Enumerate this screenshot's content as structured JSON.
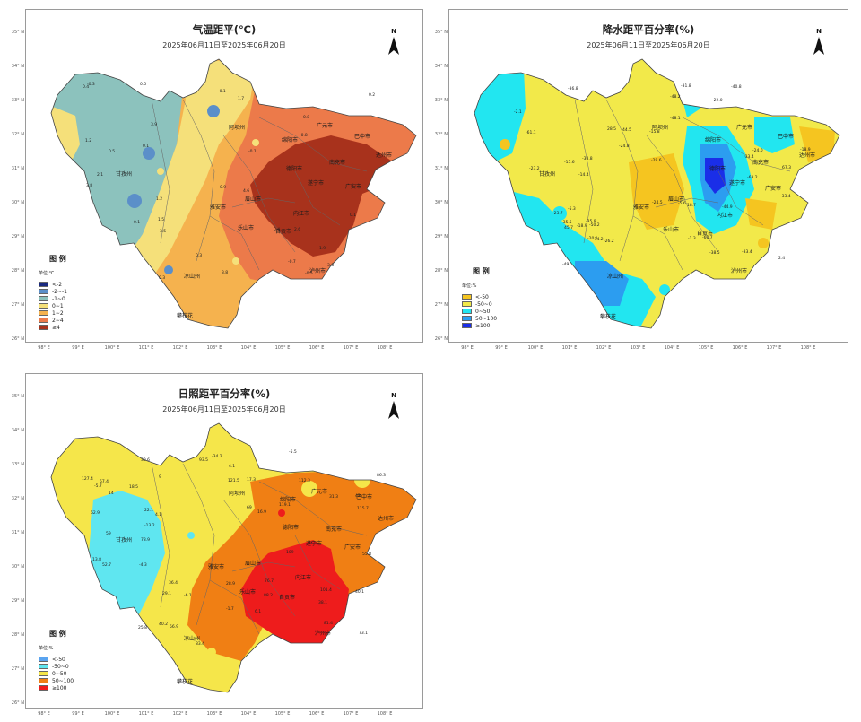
{
  "colors": {
    "temp": [
      "#1a2a80",
      "#5b8fc9",
      "#8cc2bd",
      "#f5e07a",
      "#f5b24e",
      "#ec7a4a",
      "#a8321c"
    ],
    "precip": [
      "#f5c520",
      "#f2e94a",
      "#22e6f0",
      "#2c9df0",
      "#1a2ee8"
    ],
    "sun": [
      "#5aa4f0",
      "#5fe6f0",
      "#f5e64a",
      "#f07f14",
      "#ee1c1c"
    ]
  },
  "lat_labels": [
    "35° N",
    "34° N",
    "33° N",
    "32° N",
    "31° N",
    "30° N",
    "29° N",
    "28° N",
    "27° N",
    "26° N"
  ],
  "lon_labels": [
    "98° E",
    "99° E",
    "100° E",
    "101° E",
    "102° E",
    "103° E",
    "104° E",
    "105° E",
    "106° E",
    "107° E",
    "108° E"
  ],
  "north_label": "N",
  "cities": {
    "aba": "阿坝州",
    "mianyang": "绵阳市",
    "guangyuan": "广元市",
    "bazhong": "巴中市",
    "deyang": "德阳市",
    "nanchong": "南充市",
    "dazhou": "达州市",
    "suining": "遂宁市",
    "ganzi": "甘孜州",
    "yaan": "雅安市",
    "meishan": "眉山市",
    "leshan": "乐山市",
    "zigong": "自贡市",
    "liangshan": "凉山州",
    "luzhou": "泸州市",
    "panzhihua": "攀枝花",
    "guangan": "广安市",
    "neijiang": "内江市"
  },
  "panels": {
    "temp": {
      "title": "气温距平(℃)",
      "subtitle": "2025年06月11日至2025年06月20日",
      "legend_title": "图 例",
      "legend_unit": "单位:℃",
      "legend": [
        "<-2",
        "-2~-1",
        "-1~0",
        "0~1",
        "1~2",
        "2~4",
        "≥4"
      ],
      "values": [
        "0.1",
        "-0.1",
        "-0.8",
        "-0.1",
        "0.2",
        "2.1",
        "0.5",
        "3.9",
        "0.4",
        "3.8",
        "3.5",
        "2.6",
        "0.9",
        "-0.3",
        "0.1",
        "1.7",
        "4.6",
        "3.8",
        "0.3",
        "0.1",
        "1.2",
        "3.8",
        "-0.5",
        "0.8",
        "1.2",
        "1.9",
        "0.4",
        "0.5",
        "-0.7",
        "1.5",
        "0.3"
      ]
    },
    "precip": {
      "title": "降水距平百分率(%)",
      "subtitle": "2025年06月11日至2025年06月20日",
      "legend_title": "图 例",
      "legend_unit": "单位:%",
      "legend": [
        "<-50",
        "-50~0",
        "0~50",
        "50~100",
        "≥100"
      ],
      "values": [
        "-24.5",
        "-35.9",
        "2.4",
        "-22.0",
        "-38.8",
        "-23.7",
        "-24.0",
        "-20.1",
        "-1.3",
        "-50.2",
        "-14.4",
        "-35.5",
        "-63.2",
        "-48.2",
        "-14.2",
        "-23.2",
        "-31.8",
        "45.7",
        "18.7",
        "-24.8",
        "-2.1",
        "-5.3",
        "28.5",
        "-36.8",
        "-38.5",
        "-15.6",
        "-61.1",
        "-49",
        "-40.8",
        "-44.9",
        "44.5",
        "67.3",
        "-5.6",
        "-33.4",
        "-29.6",
        "-18.9",
        "-15.8",
        "-18.9",
        "-33.4",
        "-60.7",
        "-33.4",
        "-26.2",
        "-48.1"
      ]
    },
    "sun": {
      "title": "日照距平百分率(%)",
      "subtitle": "2025年06月11日至2025年06月20日",
      "legend_title": "图 例",
      "legend_unit": "单位:%",
      "legend": [
        "<-50",
        "-50~0",
        "0~50",
        "50~100",
        "≥100"
      ],
      "values": [
        "36.4",
        "4.1",
        "29.1",
        "42",
        "-5.5",
        "9",
        "18.5",
        "31.3",
        "13.8",
        "76.7",
        "-5.7",
        "4.1",
        "25.8",
        "81.4",
        "69",
        "56.9",
        "59",
        "16.9",
        "39.6",
        "88.2",
        "83.4",
        "62.9",
        "-13.2",
        "-6.1",
        "22.1",
        "109",
        "78.9",
        "52.7",
        "-4.3",
        "84.5",
        "112.3",
        "93.5",
        "73.1",
        "6.1",
        "101.4",
        "121.5",
        "127.4",
        "-1.7",
        "86.3",
        "115.7",
        "119.1",
        "38.1",
        "14",
        "17.3",
        "-34.2",
        "55.8",
        "57.4",
        "40.2",
        "28.9",
        "40.1"
      ]
    }
  }
}
